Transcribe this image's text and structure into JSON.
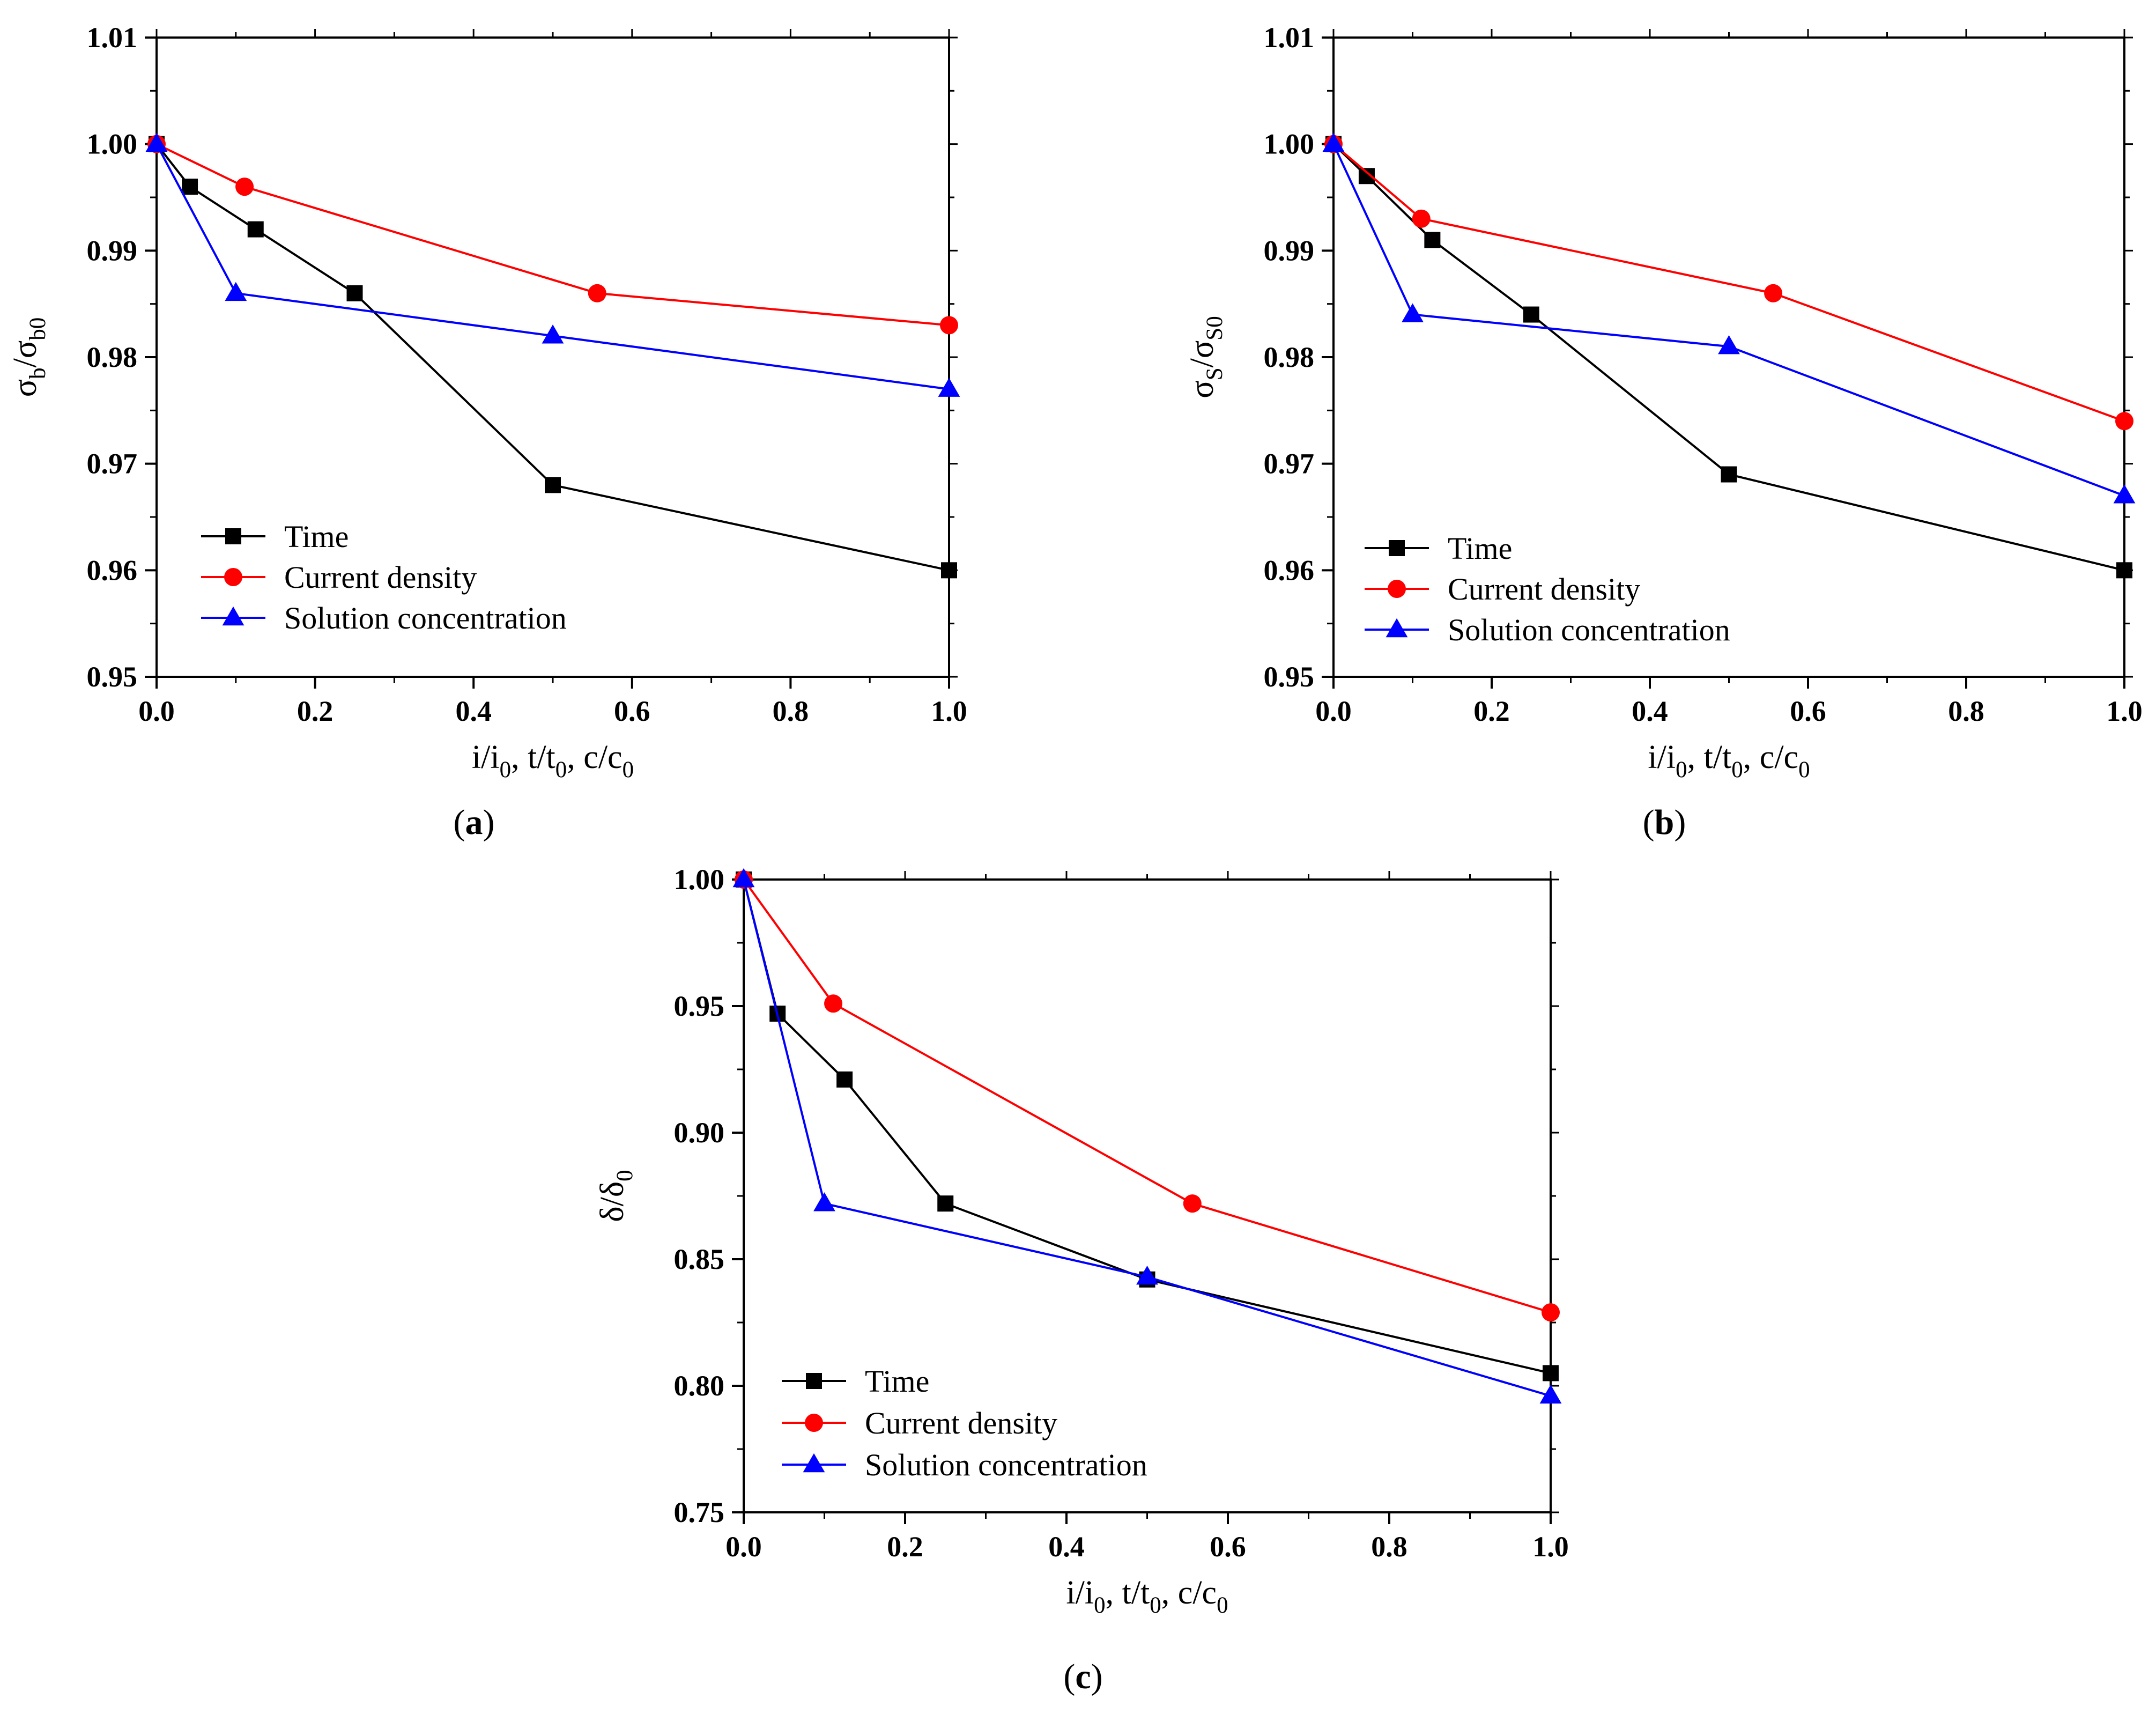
{
  "figure": {
    "series_styles": [
      {
        "name": "Time",
        "color": "#000000",
        "marker": "square"
      },
      {
        "name": "Current density",
        "color": "#ff0000",
        "marker": "circle"
      },
      {
        "name": "Solution concentration",
        "color": "#0000ff",
        "marker": "triangle"
      }
    ]
  },
  "chart_data": [
    {
      "type": "line",
      "panel_label": "a",
      "xlabel": "i/i0, t/t0, c/c0",
      "ylabel": "σb/σb0",
      "xlim": [
        0.0,
        1.0
      ],
      "ylim": [
        0.95,
        1.01
      ],
      "xticks": [
        "0.0",
        "0.2",
        "0.4",
        "0.6",
        "0.8",
        "1.0"
      ],
      "yticks": [
        "0.95",
        "0.96",
        "0.97",
        "0.98",
        "0.99",
        "1.00",
        "1.01"
      ],
      "legend": {
        "position": "bottom-left"
      },
      "series": [
        {
          "name": "Time",
          "x": [
            0.0,
            0.042,
            0.125,
            0.25,
            0.5,
            1.0
          ],
          "y": [
            1.0,
            0.996,
            0.992,
            0.986,
            0.968,
            0.96
          ]
        },
        {
          "name": "Current density",
          "x": [
            0.0,
            0.111,
            0.556,
            1.0
          ],
          "y": [
            1.0,
            0.996,
            0.986,
            0.983
          ]
        },
        {
          "name": "Solution concentration",
          "x": [
            0.0,
            0.1,
            0.5,
            1.0
          ],
          "y": [
            1.0,
            0.986,
            0.982,
            0.977
          ]
        }
      ]
    },
    {
      "type": "line",
      "panel_label": "b",
      "xlabel": "i/i0, t/t0, c/c0",
      "ylabel": "σS/σS0",
      "xlim": [
        0.0,
        1.0
      ],
      "ylim": [
        0.95,
        1.01
      ],
      "xticks": [
        "0.0",
        "0.2",
        "0.4",
        "0.6",
        "0.8",
        "1.0"
      ],
      "yticks": [
        "0.95",
        "0.96",
        "0.97",
        "0.98",
        "0.99",
        "1.00",
        "1.01"
      ],
      "legend": {
        "position": "bottom-left"
      },
      "series": [
        {
          "name": "Time",
          "x": [
            0.0,
            0.042,
            0.125,
            0.25,
            0.5,
            1.0
          ],
          "y": [
            1.0,
            0.997,
            0.991,
            0.984,
            0.969,
            0.96
          ]
        },
        {
          "name": "Current density",
          "x": [
            0.0,
            0.111,
            0.556,
            1.0
          ],
          "y": [
            1.0,
            0.993,
            0.986,
            0.974
          ]
        },
        {
          "name": "Solution concentration",
          "x": [
            0.0,
            0.1,
            0.5,
            1.0
          ],
          "y": [
            1.0,
            0.984,
            0.981,
            0.967
          ]
        }
      ]
    },
    {
      "type": "line",
      "panel_label": "c",
      "xlabel": "i/i0, t/t0, c/c0",
      "ylabel": "δ/δ0",
      "xlim": [
        0.0,
        1.0
      ],
      "ylim": [
        0.75,
        1.0
      ],
      "xticks": [
        "0.0",
        "0.2",
        "0.4",
        "0.6",
        "0.8",
        "1.0"
      ],
      "yticks": [
        "0.75",
        "0.80",
        "0.85",
        "0.90",
        "0.95",
        "1.00"
      ],
      "legend": {
        "position": "bottom-left"
      },
      "series": [
        {
          "name": "Time",
          "x": [
            0.0,
            0.042,
            0.125,
            0.25,
            0.5,
            1.0
          ],
          "y": [
            1.0,
            0.947,
            0.921,
            0.872,
            0.842,
            0.805
          ]
        },
        {
          "name": "Current density",
          "x": [
            0.0,
            0.111,
            0.556,
            1.0
          ],
          "y": [
            1.0,
            0.951,
            0.872,
            0.829
          ]
        },
        {
          "name": "Solution concentration",
          "x": [
            0.0,
            0.1,
            0.5,
            1.0
          ],
          "y": [
            1.0,
            0.872,
            0.843,
            0.796
          ]
        }
      ]
    }
  ]
}
